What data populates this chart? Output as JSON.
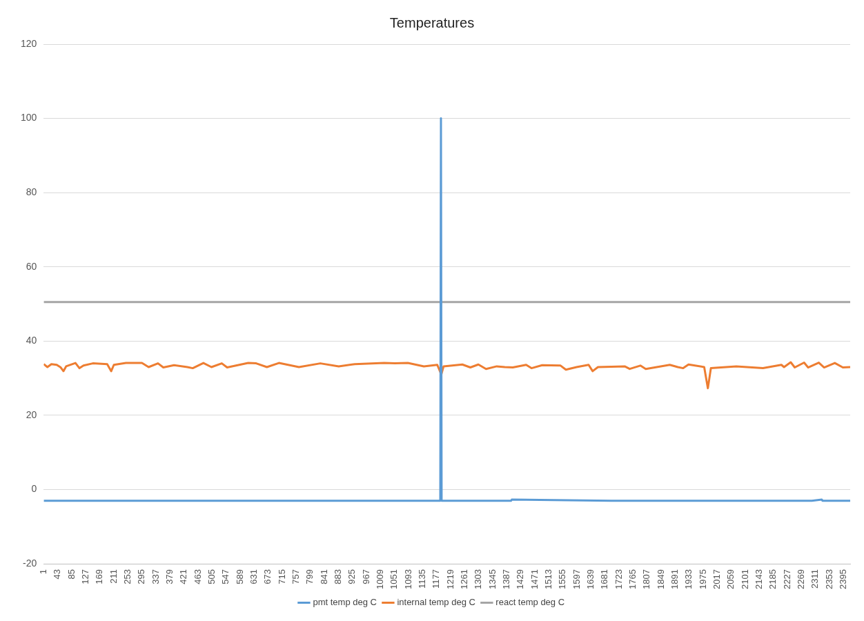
{
  "chart_data": {
    "type": "line",
    "title": "Temperatures",
    "xlim": [
      1,
      2415
    ],
    "xticks": [
      1,
      43,
      85,
      127,
      169,
      211,
      253,
      295,
      337,
      379,
      421,
      463,
      505,
      547,
      589,
      631,
      673,
      715,
      757,
      799,
      841,
      883,
      925,
      967,
      1009,
      1051,
      1093,
      1135,
      1177,
      1219,
      1261,
      1303,
      1345,
      1387,
      1429,
      1471,
      1513,
      1555,
      1597,
      1639,
      1681,
      1723,
      1765,
      1807,
      1849,
      1891,
      1933,
      1975,
      2017,
      2059,
      2101,
      2143,
      2185,
      2227,
      2269,
      2311,
      2353,
      2395
    ],
    "ylim": [
      -20,
      120
    ],
    "yticks": [
      -20,
      0,
      20,
      40,
      60,
      80,
      100,
      120
    ],
    "grid": "y",
    "legend": "bottom",
    "marker": "none",
    "line_style": "solid",
    "series": [
      {
        "name": "pmt temp deg C",
        "color": "#5b9bd5",
        "x": [
          1,
          300,
          600,
          900,
          1188,
          1190,
          1192,
          1400,
          1402,
          1700,
          2000,
          2300,
          2330,
          2332,
          2415
        ],
        "values": [
          -3,
          -3,
          -3,
          -3,
          -3,
          100,
          -3,
          -3,
          -2.7,
          -3,
          -3,
          -3,
          -2.7,
          -3,
          -3
        ]
      },
      {
        "name": "internal temp deg C",
        "color": "#ed7d31",
        "x": [
          1,
          12,
          24,
          40,
          52,
          60,
          68,
          96,
          108,
          120,
          148,
          191,
          203,
          211,
          247,
          295,
          315,
          343,
          359,
          391,
          431,
          447,
          479,
          503,
          534,
          550,
          613,
          637,
          669,
          705,
          765,
          829,
          884,
          932,
          1020,
          1052,
          1091,
          1139,
          1179,
          1191,
          1198,
          1254,
          1278,
          1302,
          1325,
          1357,
          1381,
          1405,
          1445,
          1461,
          1493,
          1548,
          1564,
          1596,
          1632,
          1644,
          1660,
          1740,
          1755,
          1787,
          1803,
          1875,
          1899,
          1915,
          1931,
          1978,
          1989,
          1998,
          2074,
          2154,
          2209,
          2217,
          2237,
          2249,
          2277,
          2289,
          2321,
          2337,
          2369,
          2393,
          2415
        ],
        "values": [
          33.8,
          33.0,
          33.8,
          33.6,
          32.9,
          31.9,
          33.2,
          34.1,
          32.7,
          33.4,
          34.0,
          33.8,
          31.9,
          33.6,
          34.1,
          34.1,
          33.0,
          34.0,
          32.9,
          33.5,
          33.0,
          32.7,
          34.1,
          33.0,
          34.0,
          32.9,
          34.1,
          34.0,
          33.0,
          34.1,
          33.0,
          34.0,
          33.2,
          33.8,
          34.1,
          34.0,
          34.1,
          33.2,
          33.6,
          31.0,
          33.2,
          33.7,
          32.9,
          33.7,
          32.5,
          33.2,
          33.0,
          32.9,
          33.6,
          32.7,
          33.5,
          33.4,
          32.3,
          33.0,
          33.6,
          31.9,
          33.0,
          33.2,
          32.5,
          33.4,
          32.5,
          33.6,
          33.0,
          32.7,
          33.7,
          33.0,
          27.3,
          32.7,
          33.2,
          32.7,
          33.6,
          33.0,
          34.3,
          32.9,
          34.2,
          32.9,
          34.2,
          32.9,
          34.1,
          32.9,
          33.0
        ]
      },
      {
        "name": "react temp deg C",
        "color": "#a5a5a5",
        "x": [
          1,
          400,
          800,
          1200,
          1600,
          2000,
          2415
        ],
        "values": [
          50.5,
          50.5,
          50.5,
          50.5,
          50.5,
          50.5,
          50.5
        ]
      }
    ]
  }
}
